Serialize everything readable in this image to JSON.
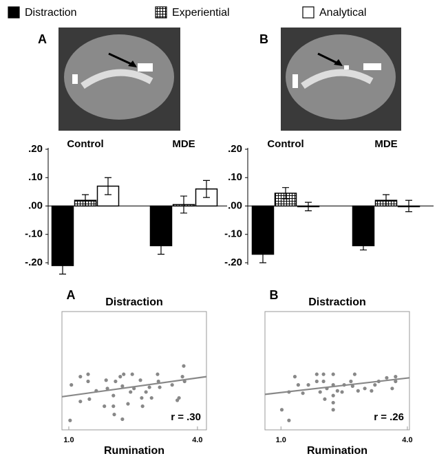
{
  "chart_data": [
    {
      "type": "bar",
      "panel": "A",
      "categories": [
        "Control",
        "MDE"
      ],
      "series": [
        {
          "name": "Distraction",
          "color": "#000000",
          "hatch": false,
          "values": [
            -0.21,
            -0.14
          ],
          "errors": [
            0.03,
            0.03
          ]
        },
        {
          "name": "Experiential",
          "color": "#ffffff",
          "hatch": true,
          "values": [
            0.02,
            0.005
          ],
          "errors": [
            0.02,
            0.03
          ]
        },
        {
          "name": "Analytical",
          "color": "#ffffff",
          "hatch": false,
          "values": [
            0.07,
            0.06
          ],
          "errors": [
            0.03,
            0.03
          ]
        }
      ],
      "ylim": [
        -0.2,
        0.2
      ],
      "yticks": [
        {
          "value": 0.2,
          "label": ".20"
        },
        {
          "value": 0.1,
          "label": ".10"
        },
        {
          "value": 0,
          "label": ".00"
        },
        {
          "value": -0.1,
          "label": "-.10"
        },
        {
          "value": -0.2,
          "label": "-.20"
        }
      ]
    },
    {
      "type": "bar",
      "panel": "B",
      "categories": [
        "Control",
        "MDE"
      ],
      "series": [
        {
          "name": "Distraction",
          "color": "#000000",
          "hatch": false,
          "values": [
            -0.17,
            -0.14
          ],
          "errors": [
            0.03,
            0.015
          ]
        },
        {
          "name": "Experiential",
          "color": "#ffffff",
          "hatch": true,
          "values": [
            0.045,
            0.02
          ],
          "errors": [
            0.02,
            0.02
          ]
        },
        {
          "name": "Analytical",
          "color": "#ffffff",
          "hatch": false,
          "values": [
            -0.002,
            0
          ],
          "errors": [
            0.015,
            0.02
          ]
        }
      ],
      "ylim": [
        -0.2,
        0.2
      ],
      "yticks": [
        {
          "value": 0.2,
          "label": ".20"
        },
        {
          "value": 0.1,
          "label": ".10"
        },
        {
          "value": 0,
          "label": ".00"
        },
        {
          "value": -0.1,
          "label": "-.10"
        },
        {
          "value": -0.2,
          "label": "-.20"
        }
      ]
    },
    {
      "type": "scatter",
      "panel": "A",
      "title": "Distraction",
      "xlabel": "Rumination",
      "annotation": "r = .30",
      "color": "#888888",
      "x": [
        1.03,
        1.06,
        1.27,
        1.27,
        1.45,
        1.45,
        1.48,
        1.64,
        1.83,
        1.87,
        1.9,
        2.04,
        2.06,
        2.04,
        2.09,
        2.2,
        2.25,
        2.25,
        2.28,
        2.38,
        2.44,
        2.48,
        2.52,
        2.67,
        2.7,
        2.72,
        2.8,
        2.88,
        2.93,
        3.07,
        3.09,
        3.12,
        3.41,
        3.53,
        3.57,
        3.65,
        3.68,
        3.7
      ],
      "y": [
        8,
        38,
        45,
        24,
        47,
        41,
        26,
        33,
        20,
        42,
        35,
        20,
        13,
        29,
        41,
        45,
        9,
        37,
        47,
        22,
        32,
        47,
        35,
        42,
        27,
        20,
        32,
        36,
        27,
        47,
        41,
        36,
        38,
        25,
        27,
        45,
        54,
        41
      ],
      "fit": {
        "x": [
          0.84,
          4.21
        ],
        "y": [
          28,
          45
        ]
      },
      "xlim": [
        0.84,
        4.21
      ],
      "ylim": [
        0,
        100
      ],
      "xticks": [
        {
          "value": 1,
          "label": "1.0"
        },
        {
          "value": 4,
          "label": "4.0"
        }
      ]
    },
    {
      "type": "scatter",
      "panel": "B",
      "title": "Distraction",
      "xlabel": "Rumination",
      "annotation": "r = .26",
      "color": "#888888",
      "x": [
        1.02,
        1.19,
        1.19,
        1.33,
        1.41,
        1.52,
        1.65,
        1.85,
        1.85,
        1.93,
        2.01,
        2.01,
        2.04,
        2.09,
        2.24,
        2.24,
        2.24,
        2.24,
        2.24,
        2.34,
        2.45,
        2.5,
        2.66,
        2.7,
        2.75,
        2.83,
        2.99,
        3.15,
        3.23,
        3.32,
        3.51,
        3.64,
        3.72,
        3.72
      ],
      "y": [
        17,
        8,
        32,
        45,
        38,
        31,
        38,
        47,
        41,
        32,
        47,
        41,
        26,
        35,
        47,
        38,
        29,
        23,
        17,
        33,
        32,
        38,
        41,
        37,
        47,
        33,
        35,
        33,
        38,
        41,
        44,
        35,
        41,
        45
      ],
      "fit": {
        "x": [
          0.62,
          4.05
        ],
        "y": [
          30,
          44
        ]
      },
      "xlim": [
        0.62,
        4.05
      ],
      "ylim": [
        0,
        100
      ],
      "xticks": [
        {
          "value": 1,
          "label": "1.0"
        },
        {
          "value": 4,
          "label": "4.0"
        }
      ]
    }
  ]
}
